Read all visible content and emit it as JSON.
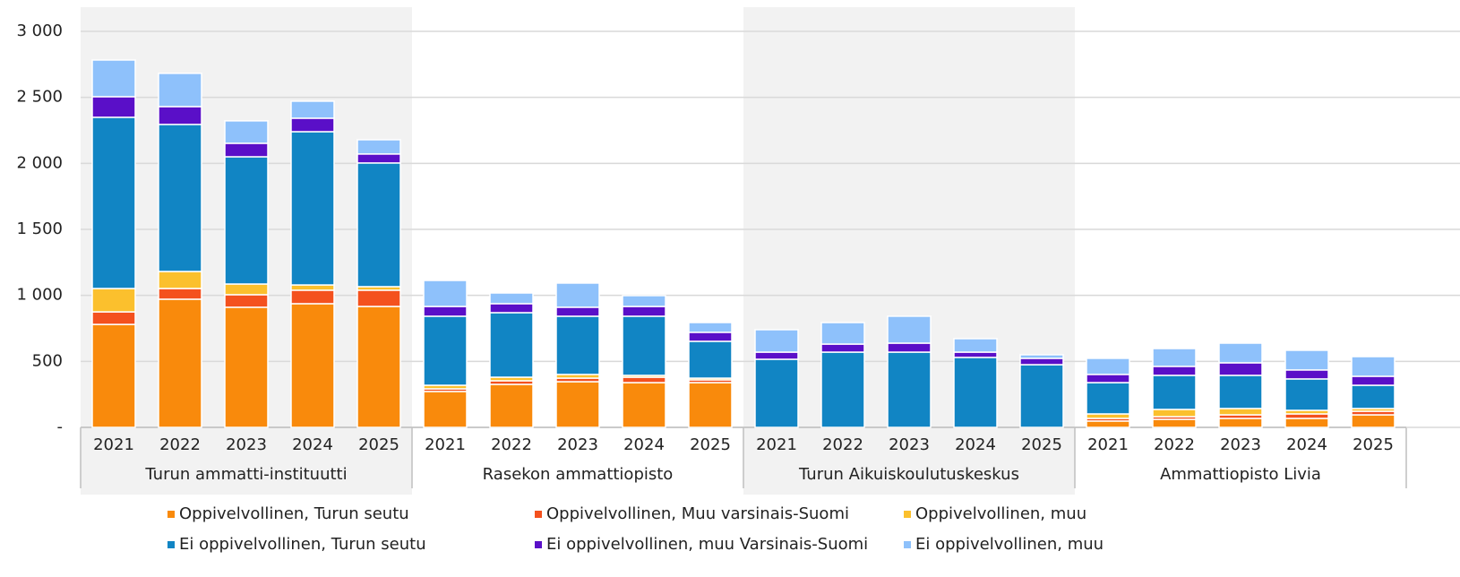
{
  "chart_data": {
    "type": "stacked_bar",
    "groups": [
      "Turun ammatti-instituutti",
      "Rasekon ammattiopisto",
      "Turun Aikuiskoulutuskeskus",
      "Ammattiopisto Livia"
    ],
    "categories": [
      "2021",
      "2022",
      "2023",
      "2024",
      "2025",
      "2021",
      "2022",
      "2023",
      "2024",
      "2025",
      "2021",
      "2022",
      "2023",
      "2024",
      "2025",
      "2021",
      "2022",
      "2023",
      "2024",
      "2025"
    ],
    "series": [
      {
        "name": "Oppivelvollinen, Turun seutu",
        "color": "#f98a0c",
        "values": [
          780,
          971,
          910,
          937,
          916,
          272,
          326,
          346,
          339,
          339,
          0,
          0,
          0,
          0,
          0,
          48,
          61,
          68,
          68,
          95
        ]
      },
      {
        "name": "Oppivelvollinen, Muu varsinais-Suomi",
        "color": "#f4511e",
        "values": [
          95,
          81,
          95,
          102,
          123,
          20,
          27,
          27,
          41,
          21,
          0,
          0,
          0,
          0,
          0,
          20,
          20,
          27,
          34,
          27
        ]
      },
      {
        "name": "Oppivelvollinen, muu",
        "color": "#fbc02d",
        "values": [
          177,
          129,
          81,
          40,
          27,
          27,
          27,
          28,
          14,
          13,
          0,
          0,
          0,
          0,
          0,
          34,
          55,
          48,
          27,
          21
        ]
      },
      {
        "name": "Ei oppivelvollinen, Turun seutu",
        "color": "#1185c4",
        "values": [
          1297,
          1114,
          964,
          1161,
          937,
          523,
          489,
          441,
          448,
          279,
          516,
          570,
          570,
          530,
          475,
          237,
          258,
          251,
          238,
          176
        ]
      },
      {
        "name": "Ei oppivelvollinen, muu Varsinais-Suomi",
        "color": "#5a0fc8",
        "values": [
          156,
          135,
          102,
          102,
          68,
          74,
          68,
          68,
          74,
          68,
          54,
          61,
          68,
          40,
          48,
          62,
          68,
          95,
          68,
          68
        ]
      },
      {
        "name": "Ei oppivelvollinen, muu",
        "color": "#8ec1fb",
        "values": [
          278,
          252,
          170,
          129,
          108,
          197,
          81,
          183,
          82,
          74,
          170,
          163,
          204,
          102,
          27,
          122,
          135,
          149,
          149,
          149
        ]
      }
    ],
    "ylim": [
      0,
      3000
    ],
    "yticks": [
      {
        "value": 0,
        "label": "-"
      },
      500,
      {
        "value": 1000,
        "label": "1 000"
      },
      {
        "value": 1500,
        "label": "1 500"
      },
      {
        "value": 2000,
        "label": "2 000"
      },
      {
        "value": 2500,
        "label": "2 500"
      },
      {
        "value": 3000,
        "label": "3 000"
      }
    ],
    "grid": true
  }
}
